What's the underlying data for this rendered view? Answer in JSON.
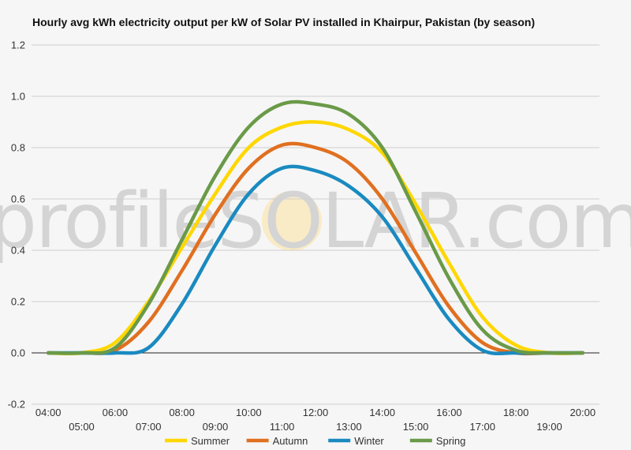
{
  "chart_data": {
    "type": "line",
    "title": "Hourly avg kWh electricity output per kW of Solar PV installed in Khairpur, Pakistan (by season)",
    "xlabel": "",
    "ylabel": "",
    "x": [
      "04:00",
      "05:00",
      "06:00",
      "07:00",
      "08:00",
      "09:00",
      "10:00",
      "11:00",
      "12:00",
      "13:00",
      "14:00",
      "15:00",
      "16:00",
      "17:00",
      "18:00",
      "19:00",
      "20:00"
    ],
    "ylim": [
      -0.2,
      1.2
    ],
    "yticks": [
      -0.2,
      0.0,
      0.2,
      0.4,
      0.6,
      0.8,
      1.0,
      1.2
    ],
    "grid": true,
    "legend_position": "bottom",
    "watermark": "profileSOLAR.com",
    "series": [
      {
        "name": "Summer",
        "color": "#FFD700",
        "values": [
          0.0,
          0.0,
          0.04,
          0.2,
          0.41,
          0.62,
          0.8,
          0.88,
          0.9,
          0.87,
          0.78,
          0.58,
          0.35,
          0.14,
          0.03,
          0.0,
          0.0
        ]
      },
      {
        "name": "Autumn",
        "color": "#E07020",
        "values": [
          0.0,
          0.0,
          0.01,
          0.12,
          0.32,
          0.54,
          0.72,
          0.81,
          0.8,
          0.74,
          0.6,
          0.39,
          0.18,
          0.04,
          0.0,
          0.0,
          0.0
        ]
      },
      {
        "name": "Winter",
        "color": "#1A8AC0",
        "values": [
          0.0,
          0.0,
          0.0,
          0.02,
          0.19,
          0.42,
          0.62,
          0.72,
          0.71,
          0.65,
          0.53,
          0.33,
          0.13,
          0.01,
          0.0,
          0.0,
          0.0
        ]
      },
      {
        "name": "Spring",
        "color": "#6A9A48",
        "values": [
          0.0,
          0.0,
          0.02,
          0.19,
          0.44,
          0.69,
          0.88,
          0.97,
          0.97,
          0.93,
          0.8,
          0.55,
          0.29,
          0.09,
          0.01,
          0.0,
          0.0
        ]
      }
    ]
  }
}
